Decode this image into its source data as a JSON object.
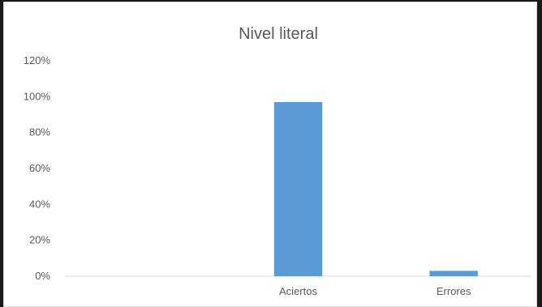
{
  "chart_data": {
    "type": "bar",
    "title": "Nivel literal",
    "categories": [
      "",
      "Aciertos",
      "Errores"
    ],
    "values": [
      null,
      0.97,
      0.03
    ],
    "ylim": [
      0,
      1.2
    ],
    "yticks": [
      0,
      0.2,
      0.4,
      0.6,
      0.8,
      1.0,
      1.2
    ],
    "ytick_labels": [
      "0%",
      "20%",
      "40%",
      "60%",
      "80%",
      "100%",
      "120%"
    ],
    "grid": false,
    "legend": "none",
    "colors": {
      "bar": "#5b9bd5",
      "axis": "#d9d9d9",
      "text": "#595959"
    }
  }
}
